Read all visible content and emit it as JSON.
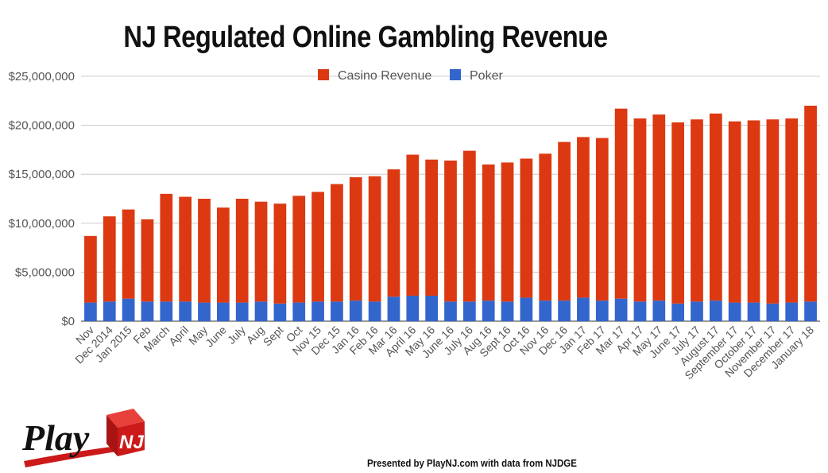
{
  "title": "NJ Regulated Online Gambling Revenue",
  "footer": "Presented by PlayNJ.com with data from NJDGE",
  "logo": {
    "text_play": "Play",
    "text_nj": "NJ"
  },
  "colors": {
    "casino": "#dc3912",
    "poker": "#3366cc",
    "grid": "#cccccc",
    "axis_text": "#555555"
  },
  "chart_data": {
    "type": "bar",
    "stacked": true,
    "title": "NJ Regulated Online Gambling Revenue",
    "xlabel": "",
    "ylabel": "",
    "ylim": [
      0,
      25000000
    ],
    "yticks": [
      0,
      5000000,
      10000000,
      15000000,
      20000000,
      25000000
    ],
    "ytick_labels": [
      "$0",
      "$5,000,000",
      "$10,000,000",
      "$15,000,000",
      "$20,000,000",
      "$25,000,000"
    ],
    "grid": true,
    "legend_position": "top",
    "categories": [
      "Nov",
      "Dec 2014",
      "Jan 2015",
      "Feb",
      "March",
      "April",
      "May",
      "June",
      "July",
      "Aug",
      "Sept",
      "Oct",
      "Nov 15",
      "Dec 15",
      "Jan 16",
      "Feb 16",
      "Mar 16",
      "April 16",
      "May 16",
      "June 16",
      "July 16",
      "Aug 16",
      "Sept 16",
      "Oct 16",
      "Nov 16",
      "Dec 16",
      "Jan 17",
      "Feb 17",
      "Mar 17",
      "Apr 17",
      "May 17",
      "June 17",
      "July 17",
      "August 17",
      "September 17",
      "October 17",
      "November 17",
      "December 17",
      "January 18"
    ],
    "series": [
      {
        "name": "Poker",
        "values": [
          1900000,
          2000000,
          2300000,
          2000000,
          2000000,
          2000000,
          1900000,
          1900000,
          1900000,
          2000000,
          1800000,
          1900000,
          2000000,
          2000000,
          2100000,
          2000000,
          2500000,
          2600000,
          2600000,
          2000000,
          2000000,
          2100000,
          2000000,
          2400000,
          2100000,
          2100000,
          2400000,
          2100000,
          2300000,
          2000000,
          2100000,
          1800000,
          2000000,
          2100000,
          1900000,
          1900000,
          1800000,
          1900000,
          2000000
        ]
      },
      {
        "name": "Casino Revenue",
        "values": [
          6800000,
          8700000,
          9100000,
          8400000,
          11000000,
          10700000,
          10600000,
          9700000,
          10600000,
          10200000,
          10200000,
          10900000,
          11200000,
          12000000,
          12600000,
          12800000,
          13000000,
          14400000,
          13900000,
          14400000,
          15400000,
          13900000,
          14200000,
          14200000,
          15000000,
          16200000,
          16400000,
          16600000,
          19400000,
          18700000,
          19000000,
          18500000,
          18600000,
          19100000,
          18500000,
          18600000,
          18800000,
          18800000,
          20000000
        ]
      }
    ]
  }
}
